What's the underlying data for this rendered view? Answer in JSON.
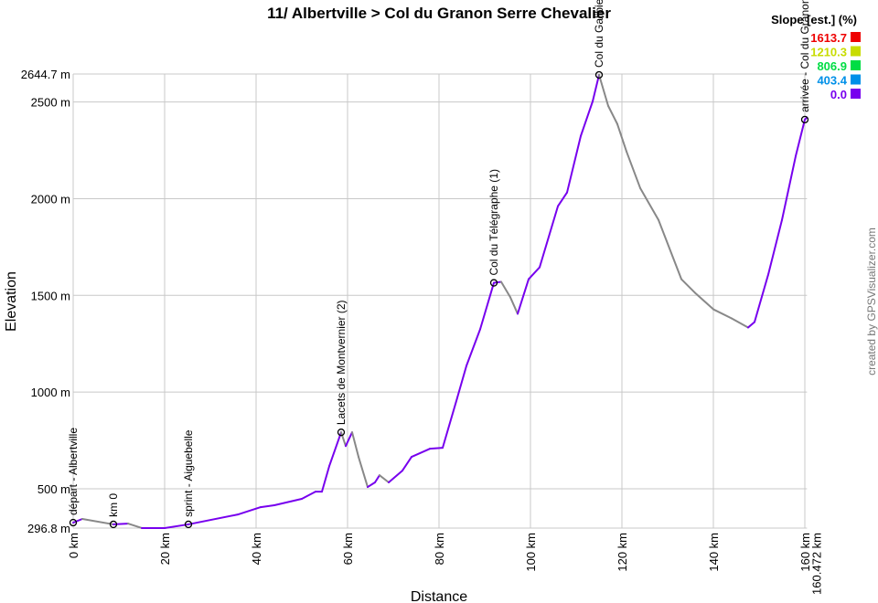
{
  "chart_data": {
    "type": "line",
    "title": "11/ Albertville > Col du Granon Serre Chevalier",
    "xlabel": "Distance",
    "ylabel": "Elevation",
    "xlim": [
      0,
      160.472
    ],
    "ylim": [
      296.8,
      2644.7
    ],
    "grid": true,
    "x_ticks": [
      "0 km",
      "20 km",
      "40 km",
      "60 km",
      "80 km",
      "100 km",
      "120 km",
      "140 km",
      "160 km"
    ],
    "x_tick_values": [
      0,
      20,
      40,
      60,
      80,
      100,
      120,
      140,
      160
    ],
    "x_end_label": "160.472 km",
    "y_ticks": [
      "296.8 m",
      "500 m",
      "1000 m",
      "1500 m",
      "2000 m",
      "2500 m",
      "2644.7 m"
    ],
    "y_tick_values": [
      296.8,
      500,
      1000,
      1500,
      2000,
      2500,
      2644.7
    ],
    "legend": {
      "title": "Slope [est.] (%)",
      "placement": "top-right",
      "entries": [
        {
          "label": "1613.7",
          "color": "#ee0000"
        },
        {
          "label": "1210.3",
          "color": "#c8dc00"
        },
        {
          "label": "806.9",
          "color": "#00dd44"
        },
        {
          "label": "403.4",
          "color": "#0090e8"
        },
        {
          "label": "0.0",
          "color": "#7700ee"
        }
      ]
    },
    "colors": {
      "climb": "#7700ee",
      "descent": "#888888"
    },
    "series": [
      {
        "x": [
          0,
          2,
          8.8,
          12,
          15,
          20,
          25.2,
          36,
          41,
          44,
          50,
          53,
          54.4,
          56,
          58.6,
          59.6,
          61,
          62.4,
          64.4,
          66,
          67,
          69,
          72,
          74,
          78,
          80.8,
          84,
          86,
          89,
          92,
          93.6,
          95.6,
          97.2,
          99.6,
          102,
          106,
          108,
          111,
          113.6,
          115,
          117,
          119,
          121,
          124,
          128,
          133,
          136,
          140,
          144,
          147.6,
          149,
          152,
          155,
          158,
          160,
          160.472
        ],
        "y": [
          325,
          344,
          316,
          320,
          297,
          297,
          316,
          367,
          405,
          415,
          448,
          485,
          485,
          617,
          792,
          721,
          792,
          665,
          509,
          533,
          570,
          533,
          594,
          665,
          707,
          712,
          971,
          1136,
          1325,
          1565,
          1570,
          1490,
          1405,
          1584,
          1645,
          1961,
          2032,
          2324,
          2503,
          2640,
          2480,
          2386,
          2244,
          2055,
          1890,
          1584,
          1513,
          1428,
          1381,
          1334,
          1362,
          1608,
          1890,
          2220,
          2409,
          2420
        ]
      }
    ],
    "waypoints": [
      {
        "label": "départ - Albertville",
        "km": 0,
        "ele": 325
      },
      {
        "label": "km 0",
        "km": 8.8,
        "ele": 316
      },
      {
        "label": "sprint - Aiguebelle",
        "km": 25.2,
        "ele": 316
      },
      {
        "label": "Lacets de Montvernier (2)",
        "km": 58.6,
        "ele": 792
      },
      {
        "label": "Col du Télégraphe (1)",
        "km": 92,
        "ele": 1565
      },
      {
        "label": "Col du Galibier",
        "km": 115,
        "ele": 2640
      },
      {
        "label": "arrivée - Col du Granon",
        "km": 160,
        "ele": 2409
      }
    ]
  },
  "credit": "created by GPSVisualizer.com"
}
